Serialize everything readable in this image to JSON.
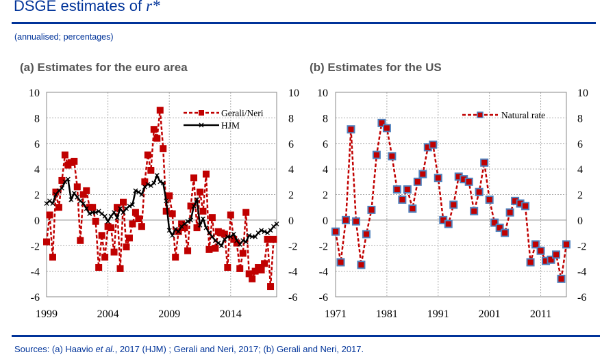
{
  "header": {
    "title": "DSGE estimates of",
    "title_symbol": "r*",
    "subtitle": "(annualised; percentages)"
  },
  "footer": {
    "sources_prefix": "Sources: (a) Haavio ",
    "sources_italic": "et al.",
    "sources_suffix": ", 2017 (HJM) ; Gerali and Neri, 2017; (b) Gerali and Neri, 2017."
  },
  "colors": {
    "brand": "#003399",
    "series_red": "#c00000",
    "series_black": "#000000",
    "marker_border": "#4f81bd"
  },
  "chart_data": [
    {
      "type": "line",
      "title": "(a) Estimates for the euro area",
      "x_start": 1999,
      "x_step": 0.25,
      "xticks": [
        "1999",
        "2004",
        "2009",
        "2014"
      ],
      "yticks": [
        "10",
        "8",
        "6",
        "4",
        "2",
        "0",
        "-2",
        "-4",
        "-6"
      ],
      "ylim": [
        -6,
        10
      ],
      "xlim": [
        1999,
        2017.75
      ],
      "grid": true,
      "legend": "top-right",
      "dual_y_axis": true,
      "series": [
        {
          "name": "Gerali/Neri",
          "style": "dashed-square",
          "values": [
            -1.7,
            0.4,
            -2.9,
            2.2,
            1.0,
            3.1,
            5.1,
            4.3,
            4.5,
            4.6,
            2.6,
            -1.6,
            2.0,
            2.3,
            1.0,
            1.0,
            -0.1,
            -3.7,
            -1.2,
            -2.9,
            -0.5,
            -0.6,
            -2.5,
            1.0,
            -3.8,
            1.4,
            -2.1,
            -1.4,
            -0.3,
            0.6,
            0.1,
            -0.5,
            3.0,
            5.1,
            3.9,
            7.1,
            6.4,
            8.6,
            5.6,
            0.7,
            1.9,
            0.5,
            -2.9,
            -0.9,
            -0.3,
            -0.6,
            -2.4,
            1.1,
            3.3,
            -0.6,
            2.2,
            0.7,
            3.6,
            -2.3,
            0.2,
            -2.2,
            -0.9,
            -1.0,
            -1.1,
            -3.7,
            0.4,
            -1.5,
            -1.8,
            -3.8,
            -2.6,
            0.6,
            -4.2,
            -4.6,
            -4.0,
            -3.7,
            -3.9,
            -3.4,
            -1.5,
            -5.2,
            -1.5
          ]
        },
        {
          "name": "HJM",
          "style": "solid-cross",
          "values": [
            1.3,
            1.5,
            1.3,
            2.0,
            2.3,
            2.5,
            3.0,
            3.2,
            1.6,
            2.1,
            1.8,
            1.5,
            1.3,
            0.9,
            0.5,
            0.6,
            0.6,
            0.7,
            0.5,
            0.3,
            -0.1,
            0.3,
            0.6,
            0.2,
            0.9,
            0.6,
            0.9,
            1.1,
            1.2,
            2.3,
            2.2,
            2.0,
            2.6,
            2.8,
            2.7,
            2.9,
            3.5,
            3.0,
            2.9,
            1.5,
            -0.8,
            -1.2,
            -0.7,
            -0.9,
            -0.5,
            -0.3,
            -0.1,
            0.0,
            1.1,
            1.6,
            -0.4,
            0.1,
            -0.6,
            -1.0,
            -1.3,
            -1.6,
            -1.8,
            -2.0,
            -1.5,
            -1.3,
            -1.3,
            -1.1,
            -1.6,
            -1.9,
            -1.6,
            -1.7,
            -1.2,
            -1.3,
            -1.3,
            -1.0,
            -0.8,
            -0.9,
            -1.0,
            -0.8,
            -0.5,
            -0.3
          ]
        }
      ]
    },
    {
      "type": "line",
      "title": "(b) Estimates for the US",
      "x_start": 1971,
      "x_step": 1,
      "xticks": [
        "1971",
        "1981",
        "1991",
        "2001",
        "2011"
      ],
      "yticks": [
        "10",
        "8",
        "6",
        "4",
        "2",
        "0",
        "-2",
        "-4",
        "-6"
      ],
      "ylim": [
        -6,
        10
      ],
      "xlim": [
        1971,
        2016
      ],
      "grid": true,
      "legend": "top-right",
      "dual_y_axis": true,
      "series": [
        {
          "name": "Natural rate",
          "style": "dashed-square-bordered",
          "values": [
            -0.9,
            -3.3,
            0.0,
            7.1,
            -0.1,
            -3.5,
            -1.1,
            0.8,
            5.1,
            7.6,
            7.2,
            5.0,
            2.4,
            1.6,
            2.4,
            0.9,
            3.0,
            3.6,
            5.7,
            5.9,
            3.3,
            0.0,
            -0.3,
            1.2,
            3.4,
            3.2,
            3.0,
            0.7,
            2.2,
            4.5,
            1.6,
            -0.2,
            -0.6,
            -1.0,
            0.6,
            1.5,
            1.3,
            1.1,
            -3.3,
            -1.9,
            -2.4,
            -3.2,
            -3.1,
            -2.7,
            -4.6,
            -1.9
          ]
        }
      ]
    }
  ]
}
